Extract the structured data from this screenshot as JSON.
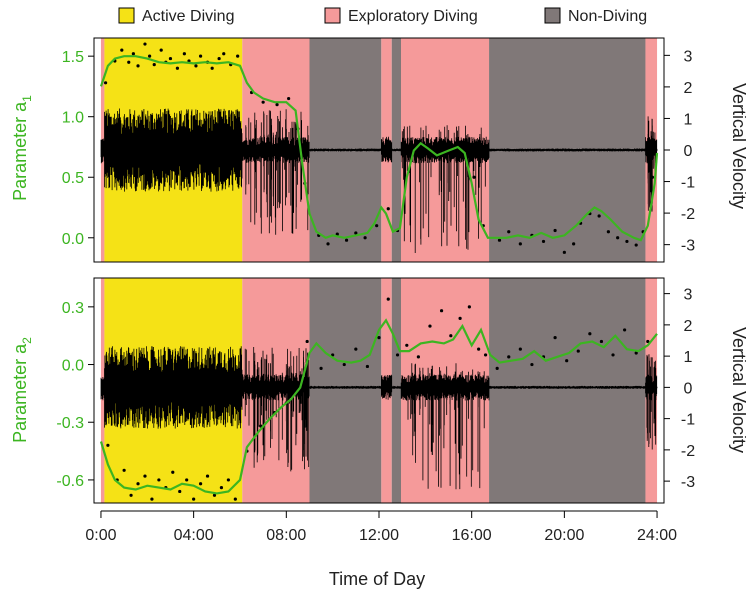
{
  "legend": [
    {
      "label": "Active Diving",
      "color": "#f5e216"
    },
    {
      "label": "Exploratory Diving",
      "color": "#f59a9a"
    },
    {
      "label": "Non-Diving",
      "color": "#807878"
    }
  ],
  "colors": {
    "active": "#f5e216",
    "exploratory": "#f59a9a",
    "nondiving": "#807878",
    "param_line": "#3cb521",
    "velocity": "#000000"
  },
  "states": [
    {
      "state": "exploratory",
      "start": 0.0,
      "end": 0.15
    },
    {
      "state": "active",
      "start": 0.15,
      "end": 6.1
    },
    {
      "state": "exploratory",
      "start": 6.1,
      "end": 9.0
    },
    {
      "state": "nondiving",
      "start": 9.0,
      "end": 12.1
    },
    {
      "state": "exploratory",
      "start": 12.1,
      "end": 12.55
    },
    {
      "state": "nondiving",
      "start": 12.55,
      "end": 12.95
    },
    {
      "state": "exploratory",
      "start": 12.95,
      "end": 16.75
    },
    {
      "state": "nondiving",
      "start": 16.75,
      "end": 23.5
    },
    {
      "state": "exploratory",
      "start": 23.5,
      "end": 24.0
    }
  ],
  "x_axis": {
    "label": "Time of Day",
    "ticks": [
      0,
      4,
      8,
      12,
      16,
      20,
      24
    ],
    "tick_labels": [
      "0:00",
      "04:00",
      "08:00",
      "12:00",
      "16:00",
      "20:00",
      "24:00"
    ],
    "range": [
      -0.3,
      24.3
    ]
  },
  "chart_data": [
    {
      "type": "line",
      "panel": "top",
      "ylabel_left": "Parameter a",
      "ylabel_left_sub": "1",
      "ylabel_right": "Vertical Velocity",
      "y_left": {
        "ticks": [
          0.0,
          0.5,
          1.0,
          1.5
        ],
        "tick_labels": [
          "0.0",
          "0.5",
          "1.0",
          "1.5"
        ],
        "range": [
          -0.2,
          1.65
        ]
      },
      "y_right": {
        "ticks": [
          -3,
          -2,
          -1,
          0,
          1,
          2,
          3
        ],
        "tick_labels": [
          "-3",
          "-2",
          "-1",
          "0",
          "1",
          "2",
          "3"
        ],
        "range": [
          -3.55,
          3.55
        ]
      },
      "series": [
        {
          "role": "parameter",
          "x": [
            0,
            0.3,
            0.6,
            1,
            1.5,
            2,
            2.5,
            3,
            3.5,
            4,
            4.5,
            5,
            5.5,
            6,
            6.3,
            6.6,
            7,
            7.5,
            8,
            8.4,
            8.7,
            9.0,
            9.3,
            9.7,
            10,
            10.5,
            11,
            11.5,
            11.8,
            12.1,
            12.3,
            12.6,
            12.9,
            13.2,
            13.5,
            13.8,
            14.1,
            14.5,
            15,
            15.4,
            15.7,
            16,
            16.3,
            16.7,
            17,
            17.5,
            18,
            18.5,
            19,
            19.5,
            20,
            20.5,
            21,
            21.3,
            21.6,
            22,
            22.5,
            23,
            23.3,
            23.6,
            23.9,
            24
          ],
          "y": [
            1.25,
            1.42,
            1.48,
            1.5,
            1.5,
            1.48,
            1.45,
            1.44,
            1.45,
            1.44,
            1.45,
            1.44,
            1.45,
            1.42,
            1.28,
            1.2,
            1.15,
            1.12,
            1.12,
            1.05,
            0.6,
            0.2,
            0.05,
            0.0,
            0.02,
            0.0,
            0.02,
            0.04,
            0.12,
            0.25,
            0.2,
            0.05,
            0.08,
            0.5,
            0.72,
            0.78,
            0.74,
            0.68,
            0.72,
            0.75,
            0.7,
            0.45,
            0.15,
            0.0,
            0.0,
            0.0,
            0.02,
            0.0,
            0.04,
            0.0,
            0.02,
            0.1,
            0.2,
            0.25,
            0.22,
            0.15,
            0.05,
            0.0,
            -0.02,
            0.1,
            0.45,
            0.7
          ]
        },
        {
          "role": "observations",
          "x": [
            0.2,
            0.6,
            0.9,
            1.2,
            1.4,
            1.6,
            1.9,
            2.1,
            2.3,
            2.6,
            2.8,
            3.0,
            3.3,
            3.6,
            3.8,
            4.1,
            4.3,
            4.6,
            4.8,
            5.1,
            5.3,
            5.6,
            5.9,
            6.5,
            7.0,
            7.6,
            8.1,
            8.5,
            8.8,
            9.4,
            9.8,
            10.2,
            10.6,
            11.0,
            11.4,
            11.9,
            12.4,
            12.8,
            13.3,
            13.7,
            14.1,
            14.6,
            15.1,
            15.6,
            16.1,
            16.5,
            17.2,
            17.6,
            18.1,
            18.6,
            19.1,
            19.6,
            20.0,
            20.4,
            20.7,
            21.1,
            21.5,
            21.9,
            22.3,
            22.7,
            23.1,
            23.4,
            23.8
          ],
          "y": [
            1.28,
            1.46,
            1.55,
            1.45,
            1.52,
            1.42,
            1.6,
            1.5,
            1.43,
            1.55,
            1.45,
            1.48,
            1.4,
            1.52,
            1.46,
            1.42,
            1.5,
            1.45,
            1.4,
            1.48,
            1.52,
            1.43,
            1.5,
            1.2,
            1.12,
            1.1,
            1.15,
            0.9,
            0.45,
            0.02,
            -0.05,
            0.03,
            -0.02,
            0.04,
            0.0,
            0.1,
            0.24,
            0.06,
            0.55,
            0.7,
            0.8,
            0.72,
            0.66,
            0.78,
            0.5,
            0.1,
            -0.02,
            0.05,
            -0.05,
            0.02,
            -0.03,
            0.06,
            -0.12,
            -0.05,
            0.12,
            0.2,
            0.18,
            0.05,
            0.0,
            -0.03,
            -0.06,
            0.05,
            0.5
          ]
        }
      ]
    },
    {
      "type": "line",
      "panel": "bottom",
      "ylabel_left": "Parameter a",
      "ylabel_left_sub": "2",
      "ylabel_right": "Vertical Velocity",
      "y_left": {
        "ticks": [
          -0.6,
          -0.3,
          0.0,
          0.3
        ],
        "tick_labels": [
          "-0.6",
          "-0.3",
          "0.0",
          "0.3"
        ],
        "range": [
          -0.72,
          0.45
        ]
      },
      "y_right": {
        "ticks": [
          -3,
          -2,
          -1,
          0,
          1,
          2,
          3
        ],
        "tick_labels": [
          "-3",
          "-2",
          "-1",
          "0",
          "1",
          "2",
          "3"
        ],
        "range": [
          -3.7,
          3.5
        ]
      },
      "series": [
        {
          "role": "parameter",
          "x": [
            0,
            0.3,
            0.6,
            1,
            1.5,
            2,
            2.5,
            3,
            3.5,
            4,
            4.5,
            5,
            5.5,
            6,
            6.3,
            6.8,
            7.3,
            7.8,
            8.2,
            8.6,
            9.0,
            9.3,
            9.7,
            10.2,
            10.8,
            11.2,
            11.6,
            12.0,
            12.3,
            12.6,
            12.9,
            13.3,
            13.8,
            14.3,
            14.8,
            15.2,
            15.6,
            16.0,
            16.4,
            16.8,
            17.2,
            17.7,
            18.2,
            18.7,
            19.2,
            19.7,
            20.2,
            20.7,
            21.2,
            21.7,
            22.2,
            22.7,
            23.2,
            23.6,
            24
          ],
          "y": [
            -0.4,
            -0.52,
            -0.6,
            -0.64,
            -0.65,
            -0.63,
            -0.64,
            -0.65,
            -0.62,
            -0.63,
            -0.66,
            -0.67,
            -0.66,
            -0.6,
            -0.43,
            -0.35,
            -0.28,
            -0.22,
            -0.18,
            -0.12,
            0.06,
            0.11,
            0.06,
            0.02,
            0.01,
            0.02,
            0.05,
            0.18,
            0.23,
            0.16,
            0.07,
            0.07,
            0.11,
            0.12,
            0.11,
            0.13,
            0.2,
            0.1,
            0.18,
            0.05,
            0.01,
            0.02,
            0.03,
            0.07,
            0.02,
            0.04,
            0.06,
            0.11,
            0.12,
            0.09,
            0.15,
            0.08,
            0.07,
            0.1,
            0.16
          ]
        },
        {
          "role": "observations",
          "x": [
            0.3,
            0.7,
            1.0,
            1.3,
            1.6,
            1.9,
            2.2,
            2.5,
            2.8,
            3.1,
            3.4,
            3.7,
            4.0,
            4.3,
            4.6,
            4.9,
            5.2,
            5.5,
            5.8,
            6.3,
            6.9,
            7.5,
            8.0,
            8.4,
            8.9,
            9.5,
            10.0,
            10.5,
            11.0,
            11.5,
            12.0,
            12.4,
            12.8,
            13.2,
            13.7,
            14.2,
            14.7,
            15.1,
            15.5,
            15.9,
            16.3,
            16.6,
            17.1,
            17.6,
            18.1,
            18.6,
            19.1,
            19.6,
            20.1,
            20.6,
            21.1,
            21.6,
            22.1,
            22.6,
            23.1,
            23.6
          ],
          "y": [
            -0.42,
            -0.6,
            -0.55,
            -0.68,
            -0.62,
            -0.58,
            -0.7,
            -0.6,
            -0.64,
            -0.56,
            -0.66,
            -0.6,
            -0.7,
            -0.62,
            -0.58,
            -0.68,
            -0.64,
            -0.6,
            -0.7,
            -0.45,
            -0.32,
            -0.25,
            -0.2,
            -0.1,
            0.12,
            -0.02,
            0.05,
            0.0,
            0.08,
            -0.01,
            0.14,
            0.34,
            0.05,
            0.1,
            0.04,
            0.2,
            0.28,
            0.15,
            0.24,
            0.3,
            0.08,
            0.05,
            -0.02,
            0.04,
            0.08,
            0.0,
            0.04,
            0.14,
            0.02,
            0.07,
            0.16,
            0.12,
            0.05,
            0.18,
            0.06,
            0.12
          ]
        }
      ]
    }
  ]
}
